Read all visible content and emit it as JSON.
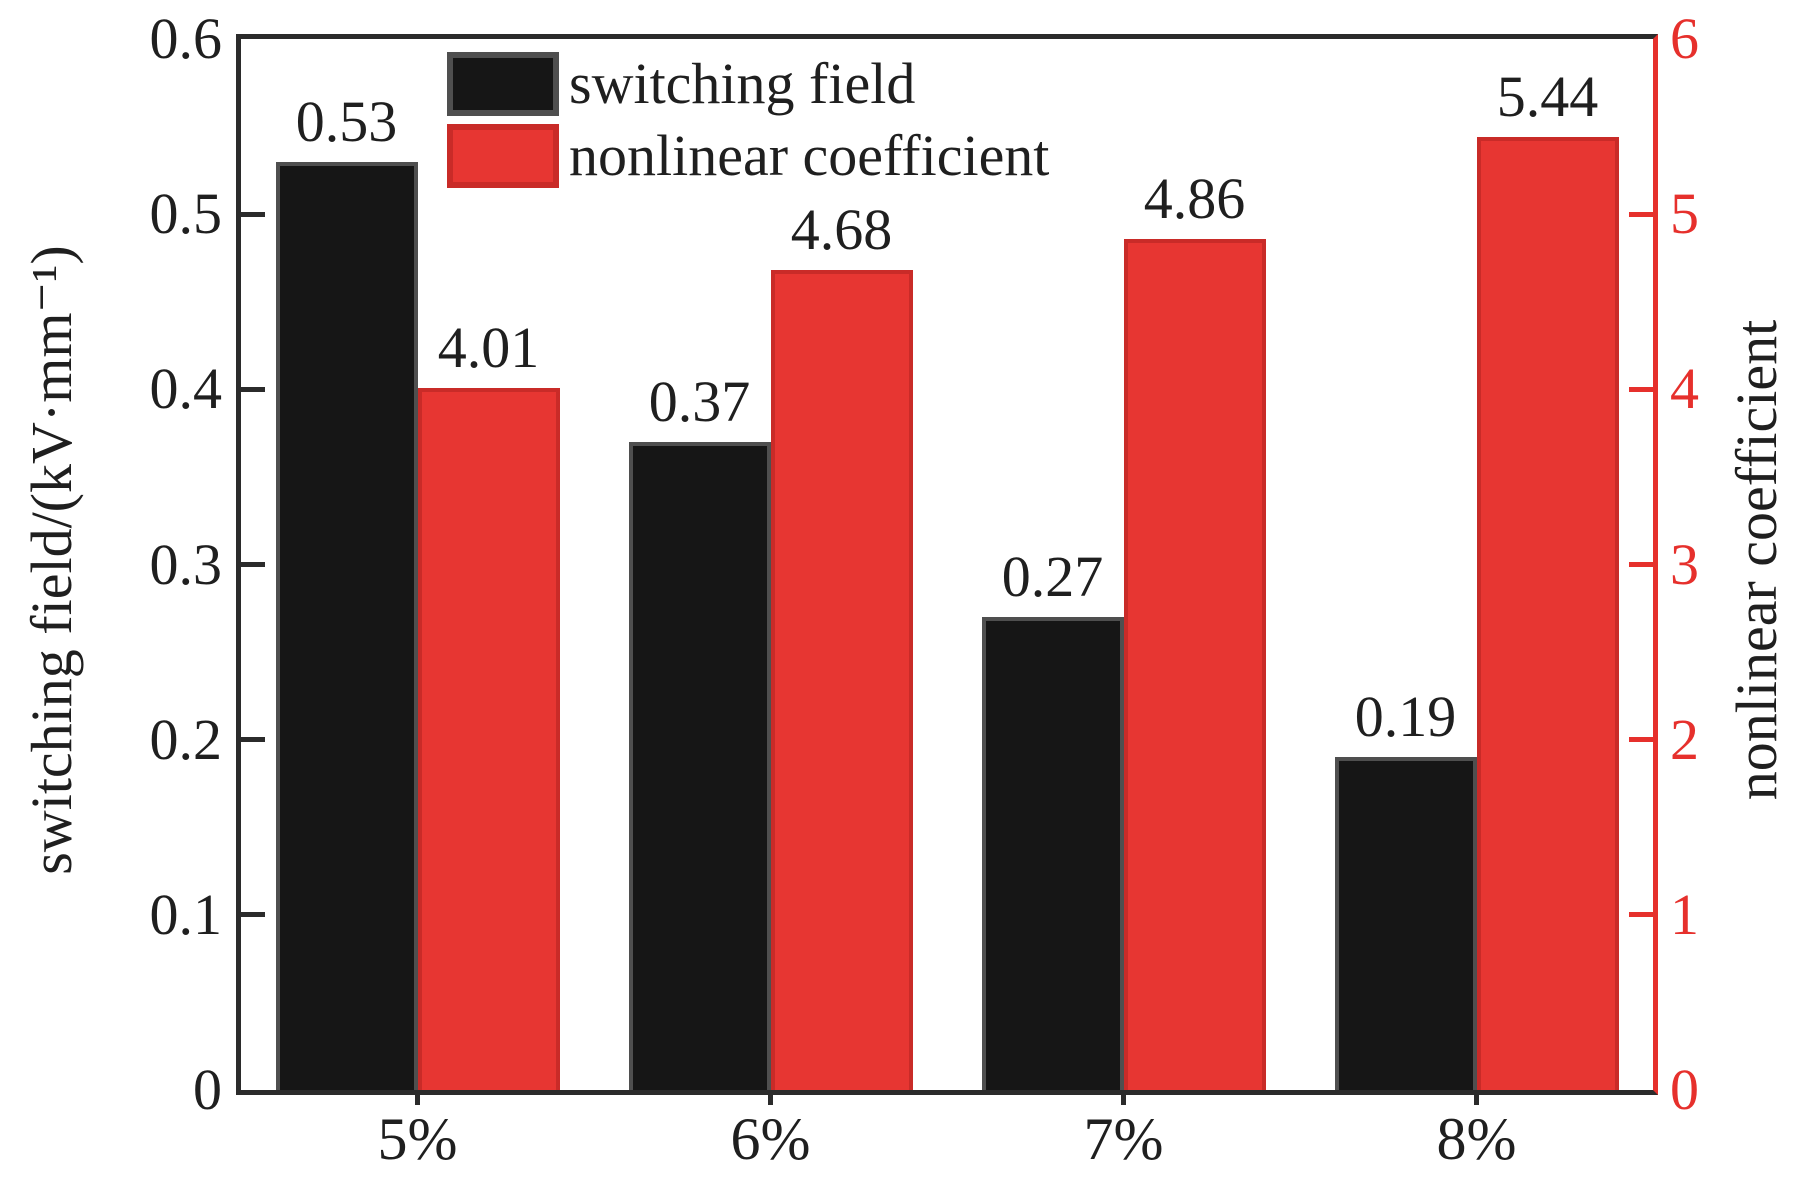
{
  "chart_data": {
    "type": "bar",
    "title": "",
    "grid": false,
    "categories": [
      "5%",
      "6%",
      "7%",
      "8%"
    ],
    "series": [
      {
        "name": "switching field",
        "axis": "left",
        "values": [
          0.53,
          0.37,
          0.27,
          0.19
        ],
        "value_labels": [
          "0.53",
          "0.37",
          "0.27",
          "0.19"
        ],
        "fill": "#161616",
        "border": "#4f4f4f"
      },
      {
        "name": "nonlinear coefficient",
        "axis": "right",
        "values": [
          4.01,
          4.68,
          4.86,
          5.44
        ],
        "value_labels": [
          "4.01",
          "4.68",
          "4.86",
          "5.44"
        ],
        "fill": "#e73632",
        "border": "#c92b28"
      }
    ],
    "left_axis": {
      "label": "switching field/(kV·mm⁻¹)",
      "min": 0,
      "max": 0.6,
      "color": "#1f1f1f",
      "ticks": [
        {
          "v": 0,
          "label": "0"
        },
        {
          "v": 0.1,
          "label": "0.1"
        },
        {
          "v": 0.2,
          "label": "0.2"
        },
        {
          "v": 0.3,
          "label": "0.3"
        },
        {
          "v": 0.4,
          "label": "0.4"
        },
        {
          "v": 0.5,
          "label": "0.5"
        },
        {
          "v": 0.6,
          "label": "0.6"
        }
      ]
    },
    "right_axis": {
      "label": "nonlinear coefficient",
      "min": 0,
      "max": 6,
      "color": "#e6302c",
      "ticks": [
        {
          "v": 0,
          "label": "0"
        },
        {
          "v": 1,
          "label": "1"
        },
        {
          "v": 2,
          "label": "2"
        },
        {
          "v": 3,
          "label": "3"
        },
        {
          "v": 4,
          "label": "4"
        },
        {
          "v": 5,
          "label": "5"
        },
        {
          "v": 6,
          "label": "6"
        }
      ]
    },
    "legend": {
      "position": "top-inside",
      "entries": [
        "switching field",
        "nonlinear coefficient"
      ]
    }
  }
}
